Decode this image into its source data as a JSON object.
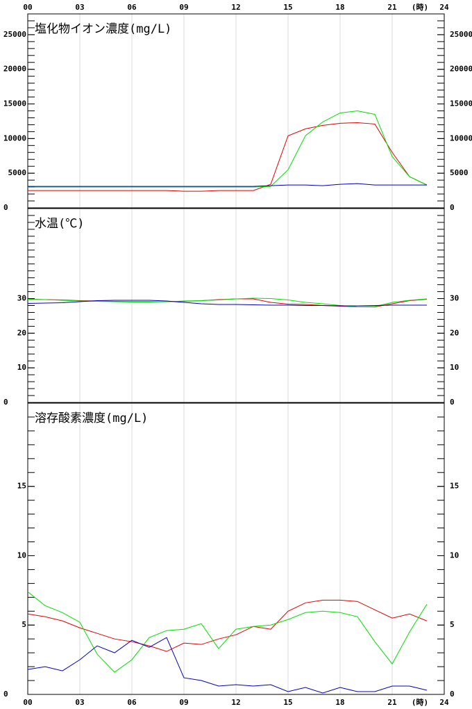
{
  "chart_data": [
    {
      "type": "line",
      "title": "塩化物イオン濃度(mg/L)",
      "xaxis_position": "top",
      "xlabel": "(時)",
      "xlim": [
        0,
        24
      ],
      "xticks": [
        {
          "value": 0,
          "label": "00"
        },
        {
          "value": 3,
          "label": "03"
        },
        {
          "value": 6,
          "label": "06"
        },
        {
          "value": 9,
          "label": "09"
        },
        12,
        15,
        18,
        21,
        24
      ],
      "ylim": [
        0,
        28000
      ],
      "yticks": [
        0,
        5000,
        10000,
        15000,
        20000,
        25000
      ],
      "yminor_step": 1000,
      "grid": true,
      "x": [
        0,
        1,
        2,
        3,
        4,
        5,
        6,
        7,
        8,
        9,
        10,
        11,
        12,
        13,
        14,
        15,
        16,
        17,
        18,
        19,
        20,
        21,
        22,
        23
      ],
      "series": [
        {
          "color": "#e00000",
          "values": [
            2500,
            2500,
            2500,
            2500,
            2500,
            2500,
            2500,
            2500,
            2500,
            2400,
            2400,
            2500,
            2500,
            2500,
            3400,
            10400,
            11400,
            11900,
            12200,
            12300,
            12100,
            8000,
            4500,
            3300
          ]
        },
        {
          "color": "#00e000",
          "values": [
            3000,
            3000,
            3000,
            3000,
            3000,
            3000,
            3000,
            3000,
            3000,
            3000,
            3000,
            3000,
            3000,
            3000,
            3100,
            5500,
            10400,
            12400,
            13700,
            14000,
            13500,
            7400,
            4500,
            3300
          ]
        },
        {
          "color": "#0000c0",
          "values": [
            3100,
            3100,
            3100,
            3100,
            3100,
            3100,
            3100,
            3100,
            3100,
            3100,
            3100,
            3100,
            3100,
            3100,
            3200,
            3300,
            3300,
            3200,
            3400,
            3500,
            3300,
            3300,
            3300,
            3300
          ]
        }
      ]
    },
    {
      "type": "line",
      "title": "水温(℃)",
      "xaxis_position": "none",
      "xlim": [
        0,
        24
      ],
      "xticks": [
        0,
        3,
        6,
        9,
        12,
        15,
        18,
        21,
        24
      ],
      "ylim": [
        0,
        56
      ],
      "yticks": [
        0,
        10,
        20,
        30
      ],
      "yminor_step": 2,
      "grid": true,
      "x": [
        0,
        1,
        2,
        3,
        4,
        5,
        6,
        7,
        8,
        9,
        10,
        11,
        12,
        13,
        14,
        15,
        16,
        17,
        18,
        19,
        20,
        21,
        22,
        23
      ],
      "series": [
        {
          "color": "#e00000",
          "values": [
            29.8,
            29.7,
            29.6,
            29.4,
            29.3,
            29.2,
            29.1,
            29.1,
            29.1,
            29.2,
            29.4,
            29.7,
            29.9,
            29.9,
            28.9,
            28.4,
            28.3,
            28.0,
            27.8,
            27.6,
            27.6,
            28.5,
            29.4,
            29.8
          ]
        },
        {
          "color": "#00e000",
          "values": [
            29.8,
            29.7,
            29.5,
            29.3,
            29.2,
            29.1,
            29.0,
            29.0,
            29.1,
            29.3,
            29.4,
            29.6,
            29.9,
            30.1,
            30.0,
            29.6,
            28.9,
            28.5,
            28.0,
            27.6,
            27.7,
            28.9,
            29.5,
            29.9
          ]
        },
        {
          "color": "#0000c0",
          "values": [
            28.6,
            28.7,
            28.8,
            29.1,
            29.4,
            29.5,
            29.5,
            29.5,
            29.3,
            28.9,
            28.5,
            28.3,
            28.3,
            28.2,
            28.1,
            28.1,
            28.0,
            28.0,
            27.9,
            27.9,
            28.0,
            28.1,
            28.1,
            28.1
          ]
        }
      ]
    },
    {
      "type": "line",
      "title": "溶存酸素濃度(mg/L)",
      "xaxis_position": "bottom",
      "xlabel": "(時)",
      "xlim": [
        0,
        24
      ],
      "xticks": [
        {
          "value": 0,
          "label": "00"
        },
        {
          "value": 3,
          "label": "03"
        },
        {
          "value": 6,
          "label": "06"
        },
        {
          "value": 9,
          "label": "09"
        },
        12,
        15,
        18,
        21,
        24
      ],
      "ylim": [
        0,
        21
      ],
      "yticks": [
        0,
        5,
        10,
        15
      ],
      "yminor_step": 1,
      "grid": true,
      "x": [
        0,
        1,
        2,
        3,
        4,
        5,
        6,
        7,
        8,
        9,
        10,
        11,
        12,
        13,
        14,
        15,
        16,
        17,
        18,
        19,
        20,
        21,
        22,
        23
      ],
      "series": [
        {
          "color": "#e00000",
          "values": [
            5.8,
            5.6,
            5.3,
            4.8,
            4.4,
            4.0,
            3.8,
            3.5,
            3.1,
            3.7,
            3.6,
            4.0,
            4.3,
            4.9,
            4.7,
            6.0,
            6.6,
            6.8,
            6.8,
            6.7,
            6.1,
            5.5,
            5.8,
            5.3
          ]
        },
        {
          "color": "#00e000",
          "values": [
            7.4,
            6.4,
            5.9,
            5.2,
            2.9,
            1.6,
            2.5,
            4.1,
            4.6,
            4.7,
            5.1,
            3.3,
            4.7,
            4.9,
            5.0,
            5.4,
            5.9,
            6.0,
            5.9,
            5.6,
            3.8,
            2.2,
            4.5,
            6.5
          ]
        },
        {
          "color": "#0000c0",
          "values": [
            1.8,
            2.0,
            1.7,
            2.5,
            3.5,
            3.0,
            3.9,
            3.4,
            4.1,
            1.2,
            1.0,
            0.6,
            0.7,
            0.6,
            0.7,
            0.2,
            0.5,
            0.1,
            0.5,
            0.2,
            0.2,
            0.6,
            0.6,
            0.3
          ]
        }
      ]
    }
  ]
}
